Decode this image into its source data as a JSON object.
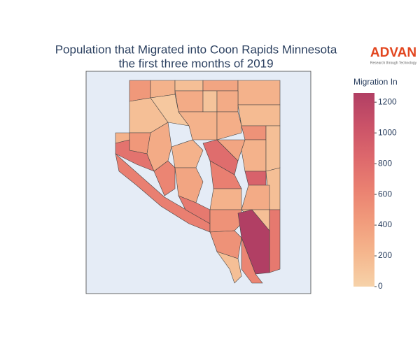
{
  "chart_data": {
    "type": "choropleth",
    "title": "Population that Migrated into Coon Rapids Minnesota",
    "subtitle": "the first three months of 2019",
    "colorbar_title": "Migration In",
    "zlim": [
      0,
      1260
    ],
    "zticks": [
      0,
      200,
      400,
      600,
      800,
      1000,
      1200
    ],
    "colorscale": [
      "#f6d2a9",
      "#f5b78e",
      "#f19c7c",
      "#ea8171",
      "#dd686c",
      "#ca5268",
      "#b13f64"
    ],
    "values": [
      450,
      250,
      150,
      350,
      250,
      300,
      120,
      300,
      180,
      150,
      80,
      250,
      280,
      250,
      450,
      750,
      300,
      250,
      800,
      500,
      350,
      250,
      150,
      900,
      150,
      600,
      350,
      650,
      650,
      700,
      300,
      250,
      500,
      150,
      700,
      1260,
      500,
      150,
      600
    ]
  },
  "logo": {
    "name": "ADVAN",
    "tagline": "Research through Technology"
  }
}
